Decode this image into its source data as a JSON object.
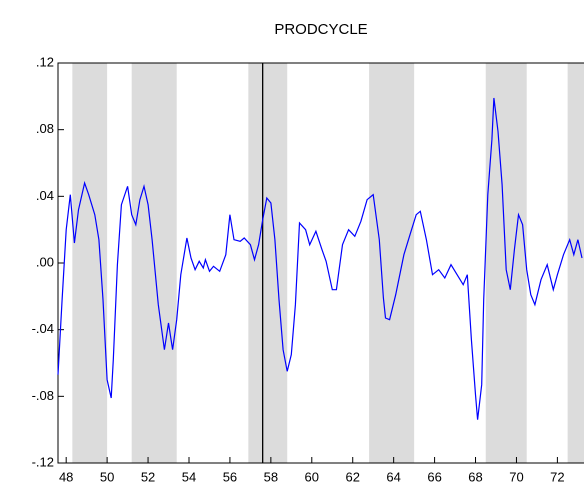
{
  "chart_data": {
    "type": "line",
    "title": "PRODCYCLE",
    "x": [
      47.6,
      47.8,
      48.0,
      48.2,
      48.4,
      48.6,
      48.9,
      49.1,
      49.4,
      49.6,
      49.8,
      50.0,
      50.2,
      50.3,
      50.5,
      50.7,
      51.0,
      51.2,
      51.4,
      51.6,
      51.8,
      52.0,
      52.2,
      52.5,
      52.8,
      53.0,
      53.2,
      53.4,
      53.6,
      53.9,
      54.1,
      54.3,
      54.5,
      54.7,
      54.8,
      55.0,
      55.2,
      55.5,
      55.8,
      56.0,
      56.2,
      56.5,
      56.7,
      57.0,
      57.2,
      57.4,
      57.6,
      57.8,
      58.0,
      58.2,
      58.4,
      58.6,
      58.8,
      59.0,
      59.2,
      59.4,
      59.7,
      59.9,
      60.2,
      60.5,
      60.7,
      61.0,
      61.2,
      61.5,
      61.8,
      62.1,
      62.4,
      62.7,
      63.0,
      63.3,
      63.5,
      63.6,
      63.8,
      64.1,
      64.5,
      64.8,
      65.1,
      65.3,
      65.6,
      65.9,
      66.2,
      66.5,
      66.8,
      67.1,
      67.4,
      67.6,
      67.8,
      68.0,
      68.1,
      68.3,
      68.4,
      68.6,
      68.8,
      68.9,
      69.1,
      69.3,
      69.5,
      69.7,
      69.9,
      70.1,
      70.3,
      70.5,
      70.7,
      70.9,
      71.2,
      71.5,
      71.8,
      72.0,
      72.3,
      72.6,
      72.8,
      73.0,
      73.2
    ],
    "series": [
      {
        "color": "#0000ff",
        "values": [
          -0.067,
          -0.022,
          0.02,
          0.041,
          0.012,
          0.032,
          0.048,
          0.041,
          0.029,
          0.014,
          -0.022,
          -0.07,
          -0.081,
          -0.058,
          -0.001,
          0.035,
          0.046,
          0.029,
          0.023,
          0.038,
          0.046,
          0.035,
          0.014,
          -0.025,
          -0.052,
          -0.036,
          -0.052,
          -0.034,
          -0.007,
          0.015,
          0.003,
          -0.004,
          0.001,
          -0.003,
          0.002,
          -0.005,
          -0.002,
          -0.005,
          0.005,
          0.029,
          0.014,
          0.013,
          0.015,
          0.011,
          0.002,
          0.011,
          0.026,
          0.039,
          0.036,
          0.014,
          -0.022,
          -0.052,
          -0.065,
          -0.055,
          -0.025,
          0.024,
          0.02,
          0.011,
          0.019,
          0.008,
          0.001,
          -0.016,
          -0.016,
          0.011,
          0.02,
          0.016,
          0.025,
          0.038,
          0.041,
          0.014,
          -0.021,
          -0.033,
          -0.034,
          -0.019,
          0.005,
          0.017,
          0.029,
          0.031,
          0.014,
          -0.007,
          -0.004,
          -0.009,
          -0.001,
          -0.007,
          -0.013,
          -0.007,
          -0.046,
          -0.079,
          -0.094,
          -0.073,
          -0.022,
          0.041,
          0.074,
          0.099,
          0.079,
          0.047,
          -0.004,
          -0.016,
          0.008,
          0.029,
          0.023,
          -0.004,
          -0.019,
          -0.025,
          -0.01,
          -0.001,
          -0.016,
          -0.007,
          0.005,
          0.014,
          0.005,
          0.014,
          0.003
        ]
      }
    ],
    "shaded_regions": [
      [
        48.3,
        50.0
      ],
      [
        51.2,
        53.4
      ],
      [
        56.9,
        58.8
      ],
      [
        62.8,
        65.0
      ],
      [
        68.5,
        70.5
      ],
      [
        72.5,
        73.3
      ]
    ],
    "shade_color": "#dcdcdc",
    "vline": 57.6,
    "xlim": [
      47.6,
      73.3
    ],
    "xticks": [
      48,
      50,
      52,
      54,
      56,
      58,
      60,
      62,
      64,
      66,
      68,
      70,
      72
    ],
    "ylim": [
      -0.12,
      0.12
    ],
    "yticks": [
      {
        "value": -0.12,
        "label": "-.12"
      },
      {
        "value": -0.08,
        "label": "-.08"
      },
      {
        "value": -0.04,
        "label": "-.04"
      },
      {
        "value": 0,
        "label": ".00"
      },
      {
        "value": 0.04,
        "label": ".04"
      },
      {
        "value": 0.08,
        "label": ".08"
      },
      {
        "value": 0.12,
        "label": ".12"
      }
    ]
  }
}
